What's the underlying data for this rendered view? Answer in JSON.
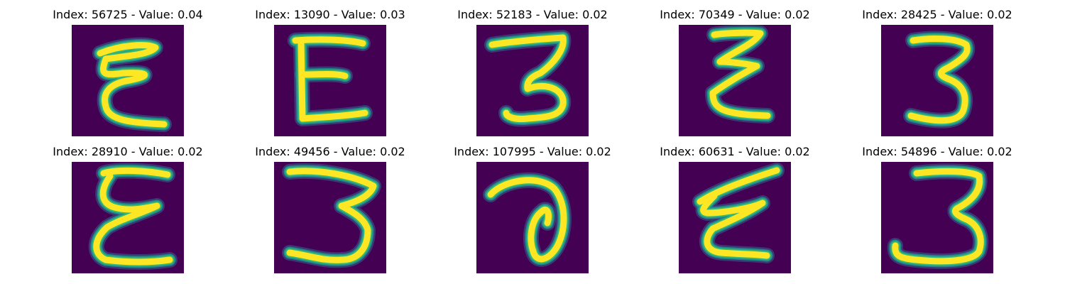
{
  "figure": {
    "background_color": "#440154",
    "panels": [
      {
        "title": "Index: 56725 - Value: 0.04",
        "index": 56725,
        "value": 0.04,
        "glyph": "epsilon"
      },
      {
        "title": "Index: 13090 - Value: 0.03",
        "index": 13090,
        "value": 0.03,
        "glyph": "e-square"
      },
      {
        "title": "Index: 52183 - Value: 0.02",
        "index": 52183,
        "value": 0.02,
        "glyph": "three"
      },
      {
        "title": "Index: 70349 - Value: 0.02",
        "index": 70349,
        "value": 0.02,
        "glyph": "epsilon-zig"
      },
      {
        "title": "Index: 28425 - Value: 0.02",
        "index": 28425,
        "value": 0.02,
        "glyph": "three-bold"
      },
      {
        "title": "Index: 28910 - Value: 0.02",
        "index": 28910,
        "value": 0.02,
        "glyph": "epsilon-tall"
      },
      {
        "title": "Index: 49456 - Value: 0.02",
        "index": 49456,
        "value": 0.02,
        "glyph": "three-wide"
      },
      {
        "title": "Index: 107995 - Value: 0.02",
        "index": 107995,
        "value": 0.02,
        "glyph": "curl"
      },
      {
        "title": "Index: 60631 - Value: 0.02",
        "index": 60631,
        "value": 0.02,
        "glyph": "epsilon-slant"
      },
      {
        "title": "Index: 54896 - Value: 0.02",
        "index": 54896,
        "value": 0.02,
        "glyph": "three-open"
      }
    ]
  }
}
